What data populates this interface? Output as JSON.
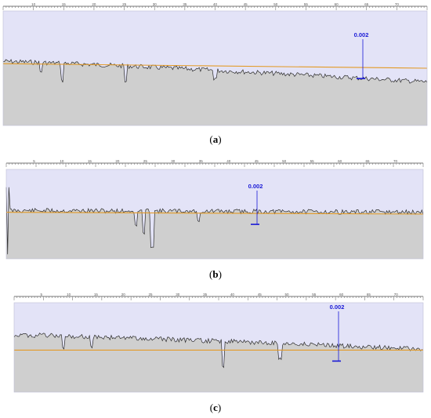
{
  "panels": [
    {
      "id": "a",
      "caption_open": "(",
      "caption_letter": "a",
      "caption_close": ")",
      "annotation": "0.002",
      "ruler_ticks": [
        "10",
        "15",
        "20",
        "25",
        "30",
        "35",
        "40",
        "45",
        "50",
        "55",
        "60",
        "65",
        "70"
      ],
      "profile_level": 0.44,
      "profile_end_level": 0.62,
      "reference_level": 0.46,
      "reference_end_level": 0.5
    },
    {
      "id": "b",
      "caption_open": "(",
      "caption_letter": "b",
      "caption_close": ")",
      "annotation": "0.002",
      "ruler_ticks": [
        "5",
        "10",
        "15",
        "20",
        "25",
        "30",
        "35",
        "40",
        "45",
        "50",
        "55",
        "60",
        "65",
        "70"
      ],
      "profile_level": 0.46,
      "profile_end_level": 0.48,
      "reference_level": 0.48,
      "reference_end_level": 0.5
    },
    {
      "id": "c",
      "caption_open": "(",
      "caption_letter": "c",
      "caption_close": ")",
      "annotation": "0.002",
      "ruler_ticks": [
        "5",
        "10",
        "15",
        "20",
        "25",
        "30",
        "35",
        "40",
        "45",
        "50",
        "55",
        "60",
        "65",
        "70"
      ],
      "profile_level": 0.36,
      "profile_end_level": 0.52,
      "reference_level": 0.53,
      "reference_end_level": 0.53
    }
  ],
  "colors": {
    "background_band": "#e3e3f7",
    "surface_fill": "#cfcfcf",
    "profile_line": "#2b2b2b",
    "reference_line": "#e39a25",
    "annotation": "#1a1ad6",
    "ruler": "#777777"
  }
}
